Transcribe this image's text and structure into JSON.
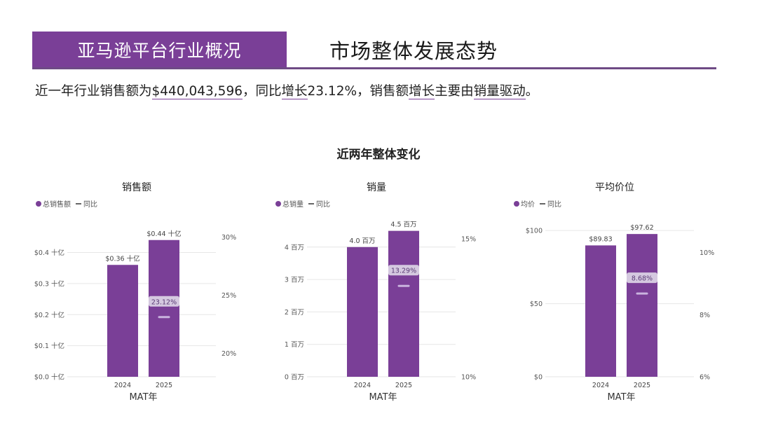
{
  "header": {
    "tab_label": "亚马逊平台行业概况",
    "title": "市场整体发展态势",
    "accent_color": "#7a3f97"
  },
  "summary": {
    "p1": "近一年行业销售额为",
    "u1": "$440,043,596",
    "p2": "，同比",
    "u2": "增长",
    "p3": "23.12%，销售额",
    "u3": "增长",
    "p4": "主要由",
    "u4": "销量",
    "u5": "驱动",
    "p5": "。"
  },
  "section_title": "近两年整体变化",
  "chart_data": [
    {
      "type": "bar",
      "title": "销售额",
      "legend": {
        "bar": "总销售额",
        "line": "同比"
      },
      "categories": [
        "2024",
        "2025"
      ],
      "values": [
        0.36,
        0.44
      ],
      "value_labels": [
        "$0.36 十亿",
        "$0.44 十亿"
      ],
      "ylim": [
        0,
        0.48
      ],
      "y_ticks": [
        0,
        0.1,
        0.2,
        0.3,
        0.4
      ],
      "y_tick_labels": [
        "$0.0 十亿",
        "$0.1 十亿",
        "$0.2 十亿",
        "$0.3 十亿",
        "$0.4 十亿"
      ],
      "y2lim": [
        18,
        30.8
      ],
      "y2_ticks": [
        20,
        25,
        30
      ],
      "y2_tick_labels": [
        "20%",
        "25%",
        "30%"
      ],
      "yoy": [
        null,
        23.12
      ],
      "yoy_labels": [
        "",
        "23.12%"
      ],
      "xlabel": "MAT年",
      "bar_color": "#7a3f97"
    },
    {
      "type": "bar",
      "title": "销量",
      "legend": {
        "bar": "总销量",
        "line": "同比"
      },
      "categories": [
        "2024",
        "2025"
      ],
      "values": [
        4.0,
        4.5
      ],
      "value_labels": [
        "4.0 百万",
        "4.5 百万"
      ],
      "ylim": [
        0,
        4.6
      ],
      "y_ticks": [
        0,
        1,
        2,
        3,
        4
      ],
      "y_tick_labels": [
        "0 百万",
        "1 百万",
        "2 百万",
        "3 百万",
        "4 百万"
      ],
      "y2lim": [
        10,
        15.4
      ],
      "y2_ticks": [
        10,
        15
      ],
      "y2_tick_labels": [
        "10%",
        "15%"
      ],
      "yoy": [
        null,
        13.29
      ],
      "yoy_labels": [
        "",
        "13.29%"
      ],
      "xlabel": "MAT年",
      "bar_color": "#7a3f97"
    },
    {
      "type": "bar",
      "title": "平均价位",
      "legend": {
        "bar": "均价",
        "line": "同比"
      },
      "categories": [
        "2024",
        "2025"
      ],
      "values": [
        89.83,
        97.62
      ],
      "value_labels": [
        "$89.83",
        "$97.62"
      ],
      "ylim": [
        0,
        102
      ],
      "y_ticks": [
        0,
        50,
        100
      ],
      "y_tick_labels": [
        "$0",
        "$50",
        "$100"
      ],
      "y2lim": [
        6,
        10.8
      ],
      "y2_ticks": [
        6,
        8,
        10
      ],
      "y2_tick_labels": [
        "6%",
        "8%",
        "10%"
      ],
      "yoy": [
        null,
        8.68
      ],
      "yoy_labels": [
        "",
        "8.68%"
      ],
      "xlabel": "MAT年",
      "bar_color": "#7a3f97"
    }
  ]
}
